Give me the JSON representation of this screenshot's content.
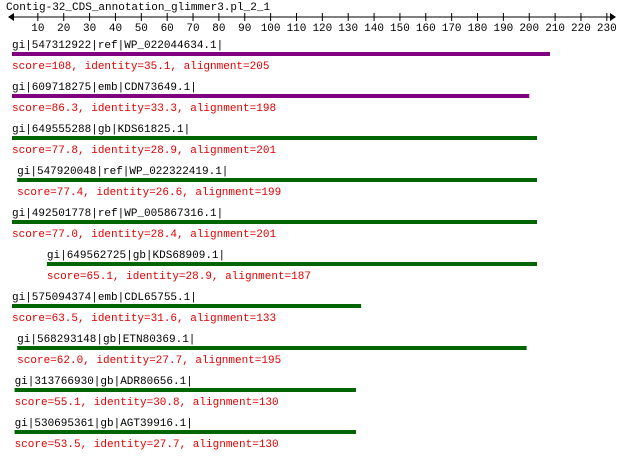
{
  "chart_data": {
    "type": "alignment",
    "title": "Contig-32_CDS_annotation_glimmer3.pl_2_1",
    "xlim": [
      0,
      232
    ],
    "xticks": [
      10,
      20,
      30,
      40,
      50,
      60,
      70,
      80,
      90,
      100,
      110,
      120,
      130,
      140,
      150,
      160,
      170,
      180,
      190,
      200,
      210,
      220,
      230
    ],
    "series": [
      {
        "name": "gi|547312922|ref|WP_022044634.1|",
        "color": "#800080",
        "start": 0,
        "end": 208,
        "note": "score=108, identity=35.1, alignment=205"
      },
      {
        "name": "gi|609718275|emb|CDN73649.1|",
        "color": "#800080",
        "start": 0,
        "end": 200,
        "note": "score=86.3, identity=33.3, alignment=198"
      },
      {
        "name": "gi|649555288|gb|KDS61825.1|",
        "color": "#006400",
        "start": 0,
        "end": 203,
        "note": "score=77.8, identity=28.9, alignment=201"
      },
      {
        "name": "gi|547920048|ref|WP_022322419.1|",
        "color": "#006400",
        "start": 2,
        "end": 203,
        "note": "score=77.4, identity=26.6, alignment=199"
      },
      {
        "name": "gi|492501778|ref|WP_005867316.1|",
        "color": "#006400",
        "start": 0,
        "end": 203,
        "note": "score=77.0, identity=28.4, alignment=201"
      },
      {
        "name": "gi|649562725|gb|KDS68909.1|",
        "color": "#006400",
        "start": 13.5,
        "end": 203,
        "note": "score=65.1, identity=28.9, alignment=187"
      },
      {
        "name": "gi|575094374|emb|CDL65755.1|",
        "color": "#006400",
        "start": 0,
        "end": 135,
        "note": "score=63.5, identity=31.6, alignment=133"
      },
      {
        "name": "gi|568293148|gb|ETN80369.1|",
        "color": "#006400",
        "start": 2,
        "end": 199,
        "note": "score=62.0, identity=27.7, alignment=195"
      },
      {
        "name": "gi|313766930|gb|ADR80656.1|",
        "color": "#006400",
        "start": 1,
        "end": 133,
        "note": "score=55.1, identity=30.8, alignment=130"
      },
      {
        "name": "gi|530695361|gb|AGT39916.1|",
        "color": "#006400",
        "start": 1,
        "end": 133,
        "note": "score=53.5, identity=27.7, alignment=130"
      }
    ]
  }
}
